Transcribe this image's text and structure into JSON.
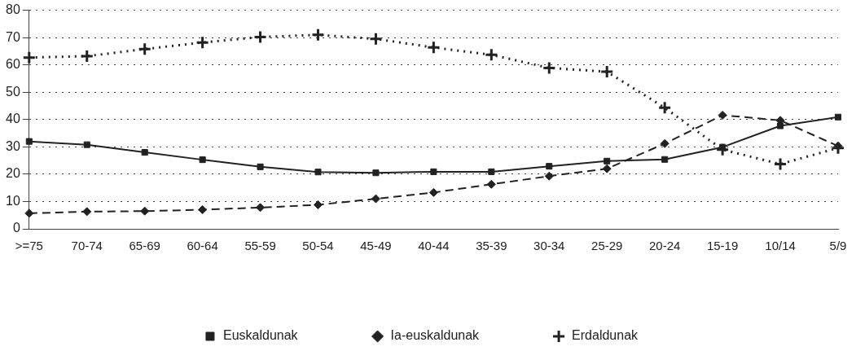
{
  "chart_data": {
    "type": "line",
    "categories": [
      ">=75",
      "70-74",
      "65-69",
      "60-64",
      "55-59",
      "50-54",
      "45-49",
      "40-44",
      "35-39",
      "30-34",
      "25-29",
      "20-24",
      "15-19",
      "10/14",
      "5/9"
    ],
    "series": [
      {
        "name": "Euskaldunak",
        "color": "#222222",
        "marker": "square",
        "line_style": "solid",
        "values": [
          32,
          30.8,
          28,
          25.3,
          22.7,
          20.8,
          20.5,
          20.9,
          20.9,
          22.9,
          24.8,
          25.4,
          29.9,
          37.7,
          40.9
        ]
      },
      {
        "name": "Ia-euskaldunak",
        "color": "#222222",
        "marker": "diamond",
        "line_style": "dashed",
        "values": [
          5.7,
          6.3,
          6.5,
          7,
          7.8,
          8.8,
          11,
          13.3,
          16.3,
          19.3,
          22,
          31.2,
          41.6,
          39.7,
          30.3
        ]
      },
      {
        "name": "Erdaldunak",
        "color": "#222222",
        "marker": "cross",
        "line_style": "dotted",
        "values": [
          62.7,
          63.2,
          65.8,
          68.2,
          70.2,
          71,
          69.5,
          66.4,
          63.7,
          58.9,
          57.5,
          44.3,
          29,
          23.7,
          29.6
        ]
      }
    ],
    "ylim": [
      0,
      80
    ],
    "yticks": [
      0,
      10,
      20,
      30,
      40,
      50,
      60,
      70,
      80
    ],
    "grid": "y",
    "legend": "bottom"
  }
}
